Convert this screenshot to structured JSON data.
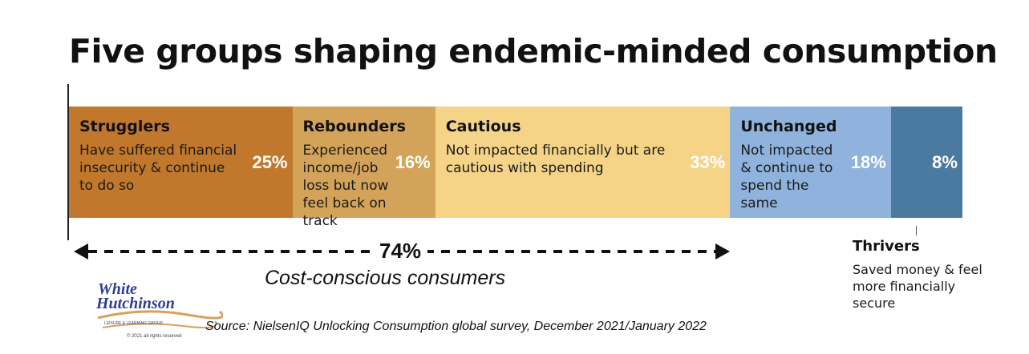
{
  "title": "Five groups shaping endemic-minded consumption",
  "chart_data": {
    "type": "bar",
    "stacked": true,
    "title": "Five groups shaping endemic-minded consumption",
    "categories": [
      "Strugglers",
      "Rebounders",
      "Cautious",
      "Unchanged",
      "Thrivers"
    ],
    "descriptions": [
      "Have suffered financial insecurity & continue to do so",
      "Experienced income/job loss but now feel back on track",
      "Not impacted financially but are cautious with spending",
      "Not impacted & continue to spend the same",
      "Saved money & feel more financially secure"
    ],
    "values": [
      25,
      16,
      33,
      18,
      8
    ],
    "labels": [
      "25%",
      "16%",
      "33%",
      "18%",
      "8%"
    ],
    "colors": [
      "#c2782c",
      "#d4a35a",
      "#f5d488",
      "#8fb3dc",
      "#4a7aa0"
    ],
    "ylim": [
      0,
      100
    ],
    "annotation": {
      "value": "74%",
      "label": "Cost-conscious consumers"
    }
  },
  "thrivers": {
    "name": "Thrivers",
    "desc": "Saved money & feel more financially secure"
  },
  "source": "Source: NielsenIQ Unlocking Consumption global survey, December 2021/January 2022",
  "logo": {
    "line1": "White",
    "line2": "Hutchinson",
    "ribbon": "LEISURE & LEARNING GROUP",
    "copyright": "© 2021 all rights reserved"
  }
}
